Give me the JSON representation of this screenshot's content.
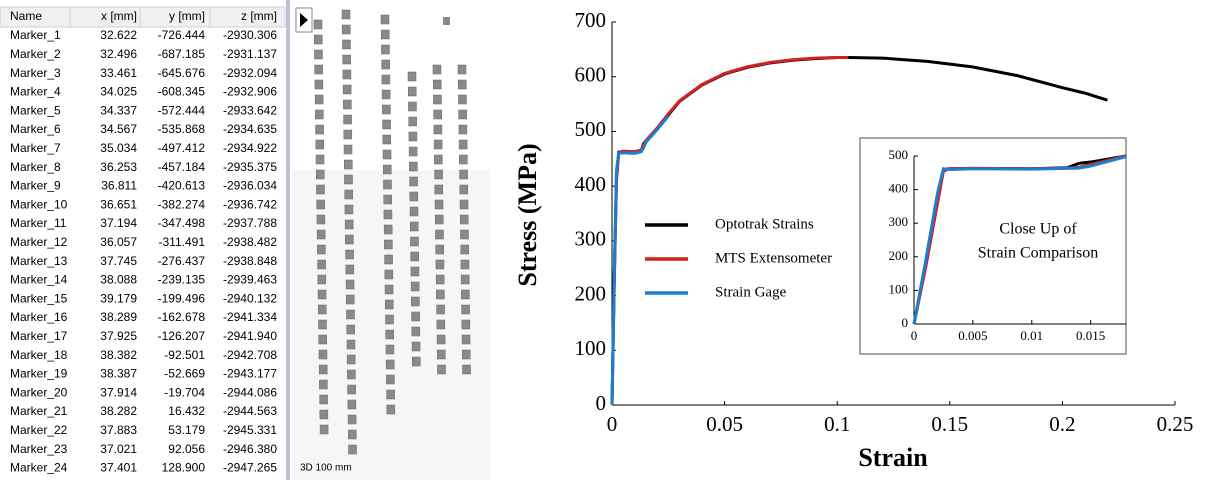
{
  "table": {
    "header": [
      "Name",
      "x [mm]",
      "y [mm]",
      "z [mm]"
    ],
    "rows": [
      [
        "Marker_1",
        "32.622",
        "-726.444",
        "-2930.306"
      ],
      [
        "Marker_2",
        "32.496",
        "-687.185",
        "-2931.137"
      ],
      [
        "Marker_3",
        "33.461",
        "-645.676",
        "-2932.094"
      ],
      [
        "Marker_4",
        "34.025",
        "-608.345",
        "-2932.906"
      ],
      [
        "Marker_5",
        "34.337",
        "-572.444",
        "-2933.642"
      ],
      [
        "Marker_6",
        "34.567",
        "-535.868",
        "-2934.635"
      ],
      [
        "Marker_7",
        "35.034",
        "-497.412",
        "-2934.922"
      ],
      [
        "Marker_8",
        "36.253",
        "-457.184",
        "-2935.375"
      ],
      [
        "Marker_9",
        "36.811",
        "-420.613",
        "-2936.034"
      ],
      [
        "Marker_10",
        "36.651",
        "-382.274",
        "-2936.742"
      ],
      [
        "Marker_11",
        "37.194",
        "-347.498",
        "-2937.788"
      ],
      [
        "Marker_12",
        "36.057",
        "-311.491",
        "-2938.482"
      ],
      [
        "Marker_13",
        "37.745",
        "-276.437",
        "-2938.848"
      ],
      [
        "Marker_14",
        "38.088",
        "-239.135",
        "-2939.463"
      ],
      [
        "Marker_15",
        "39.179",
        "-199.496",
        "-2940.132"
      ],
      [
        "Marker_16",
        "38.289",
        "-162.678",
        "-2941.334"
      ],
      [
        "Marker_17",
        "37.925",
        "-126.207",
        "-2941.940"
      ],
      [
        "Marker_18",
        "38.382",
        "-92.501",
        "-2942.708"
      ],
      [
        "Marker_19",
        "38.387",
        "-52.669",
        "-2943.177"
      ],
      [
        "Marker_20",
        "37.914",
        "-19.704",
        "-2944.086"
      ],
      [
        "Marker_21",
        "38.282",
        "16.432",
        "-2944.563"
      ],
      [
        "Marker_22",
        "37.883",
        "53.179",
        "-2945.331"
      ],
      [
        "Marker_23",
        "37.021",
        "92.056",
        "-2946.380"
      ],
      [
        "Marker_24",
        "37.401",
        "128.900",
        "-2947.265"
      ]
    ]
  },
  "view_label": "3D 100 mm",
  "chart_data": [
    {
      "type": "line",
      "xlabel": "Strain",
      "ylabel": "Stress (MPa)",
      "xlim": [
        0,
        0.25
      ],
      "xticks": [
        0,
        0.05,
        0.1,
        0.15,
        0.2,
        0.25
      ],
      "ylim": [
        0,
        700
      ],
      "yticks": [
        0,
        100,
        200,
        300,
        400,
        500,
        600,
        700
      ],
      "x": [
        0,
        0.001,
        0.002,
        0.003,
        0.005,
        0.01,
        0.013,
        0.014,
        0.015,
        0.02,
        0.025,
        0.03,
        0.04,
        0.05,
        0.06,
        0.07,
        0.08,
        0.09,
        0.1,
        0.105,
        0.12,
        0.14,
        0.16,
        0.18,
        0.2,
        0.21,
        0.22
      ],
      "series": [
        {
          "name": "Optotrak Strains",
          "color": "#000000",
          "values": [
            0,
            230,
            420,
            462,
            463,
            462,
            465,
            478,
            482,
            505,
            530,
            555,
            585,
            605,
            617,
            625,
            630,
            633,
            635,
            635,
            634,
            628,
            618,
            602,
            580,
            570,
            557
          ]
        },
        {
          "name": "MTS Extensometer",
          "color": "#d42020",
          "values": [
            0,
            220,
            410,
            461,
            464,
            463,
            466,
            476,
            483,
            506,
            532,
            556,
            586,
            606,
            618,
            626,
            631,
            634,
            635,
            635,
            null,
            null,
            null,
            null,
            null,
            null,
            null
          ]
        },
        {
          "name": "Strain Gage",
          "color": "#1a7fd0",
          "values": [
            0,
            240,
            430,
            460,
            461,
            460,
            463,
            470,
            480,
            503,
            528,
            null,
            null,
            null,
            null,
            null,
            null,
            null,
            null,
            null,
            null,
            null,
            null,
            null,
            null,
            null,
            null
          ]
        }
      ],
      "legend": "left"
    },
    {
      "type": "line",
      "annotations": [
        "Close Up of",
        "Strain Comparison"
      ],
      "xlim": [
        0,
        0.018
      ],
      "xticks": [
        0,
        0.005,
        0.01,
        0.015
      ],
      "ylim": [
        0,
        500
      ],
      "yticks": [
        0,
        100,
        200,
        300,
        400,
        500
      ],
      "x": [
        0,
        0.001,
        0.002,
        0.0025,
        0.003,
        0.005,
        0.01,
        0.013,
        0.014,
        0.015,
        0.018
      ],
      "series": [
        {
          "color": "#000000",
          "values": [
            0,
            180,
            380,
            460,
            462,
            463,
            462,
            465,
            478,
            482,
            500
          ]
        },
        {
          "color": "#d42020",
          "values": [
            0,
            170,
            360,
            455,
            462,
            463,
            462,
            464,
            466,
            475,
            500
          ]
        },
        {
          "color": "#1a7fd0",
          "values": [
            0,
            190,
            390,
            462,
            460,
            462,
            461,
            463,
            464,
            470,
            498
          ]
        }
      ]
    }
  ]
}
